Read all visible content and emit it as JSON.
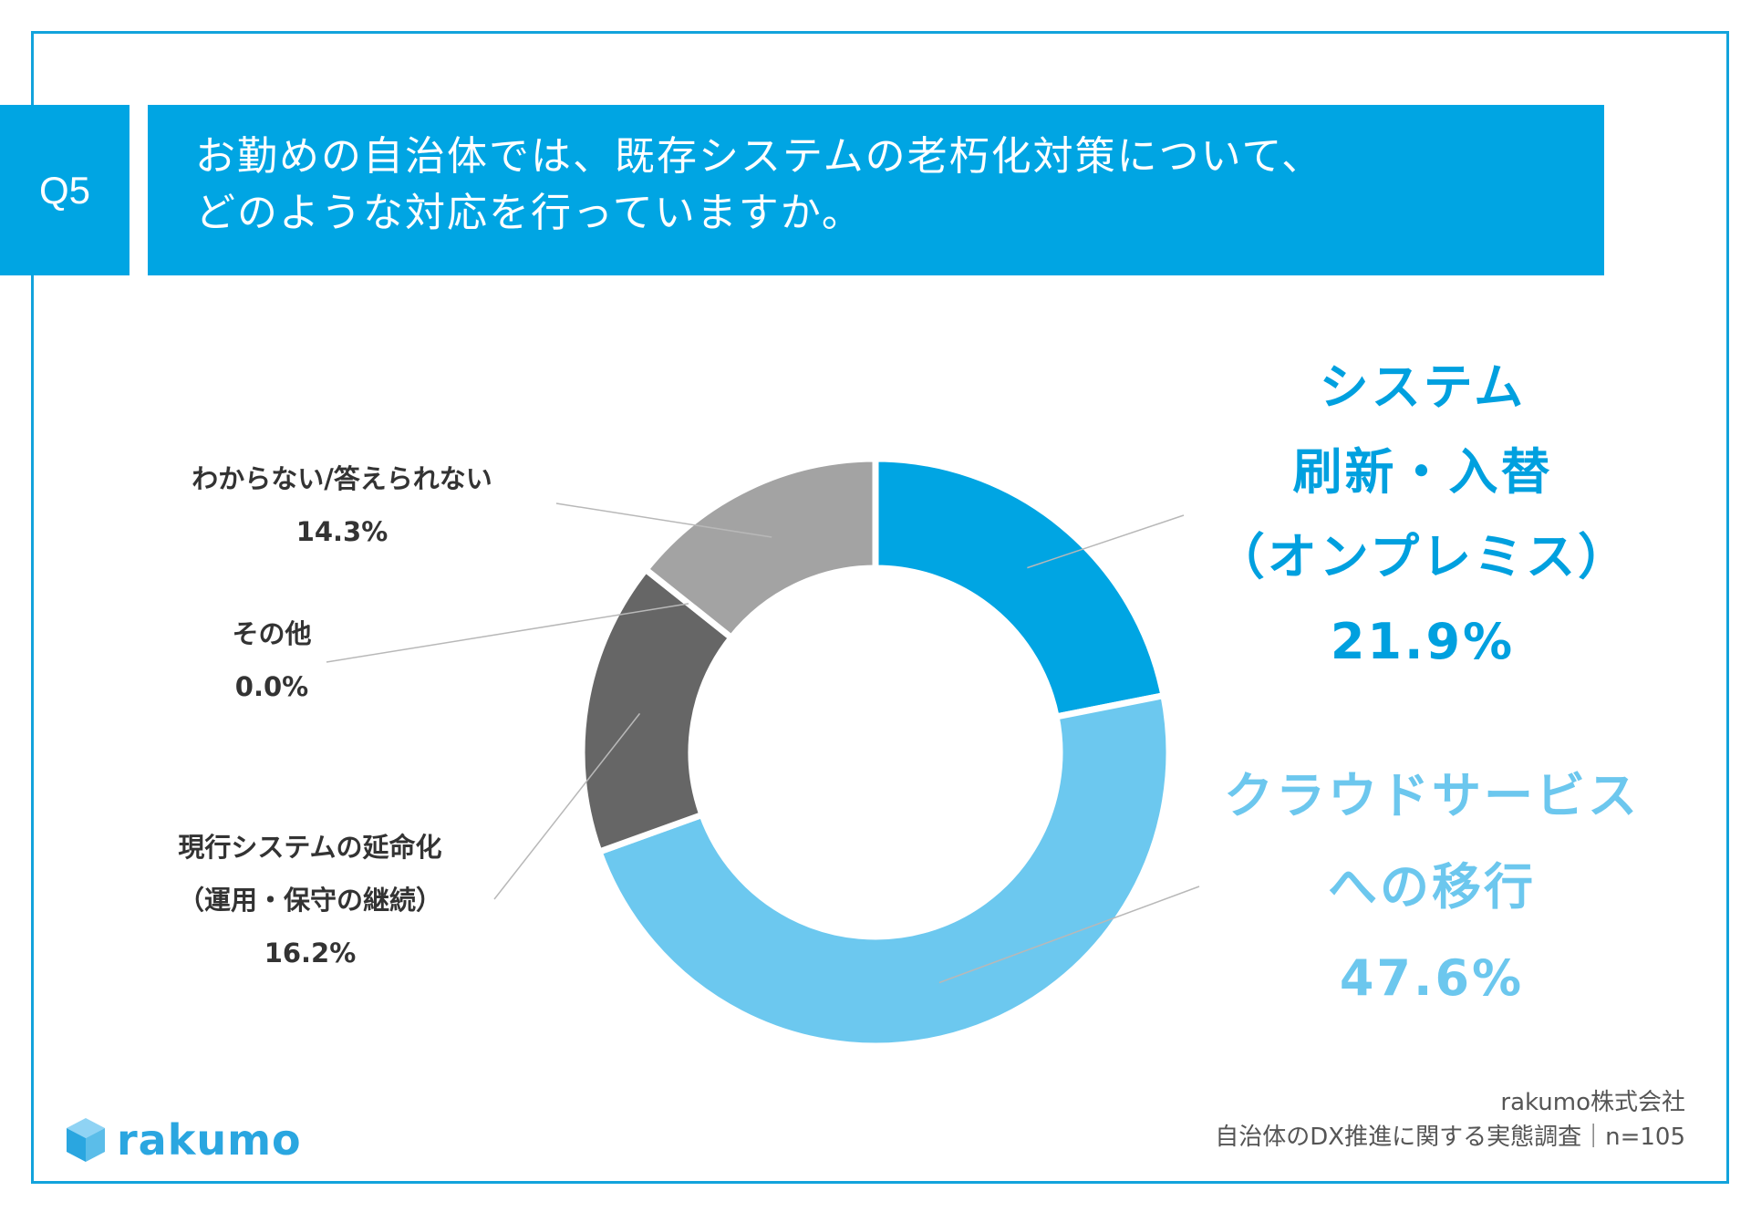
{
  "question": {
    "badge": "Q5",
    "line1": "お勤めの自治体では、既存システムの老朽化対策について、",
    "line2": "どのような対応を行っていますか。"
  },
  "chart_data": {
    "type": "pie",
    "style": "donut",
    "slices": [
      {
        "name": "システム刷新・入替（オンプレミス）",
        "value": 21.9,
        "color": "#00a5e3"
      },
      {
        "name": "クラウドサービスへの移行",
        "value": 47.6,
        "color": "#6cc8ef"
      },
      {
        "name": "現行システムの延命化（運用・保守の継続）",
        "value": 16.2,
        "color": "#666666"
      },
      {
        "name": "その他",
        "value": 0.0,
        "color": "#444444"
      },
      {
        "name": "わからない/答えられない",
        "value": 14.3,
        "color": "#a3a3a3"
      }
    ],
    "labels": {
      "renewal": {
        "lines": [
          "システム",
          "刷新・入替",
          "（オンプレミス）"
        ],
        "pct": "21.9%"
      },
      "cloud": {
        "lines": [
          "クラウドサービス",
          "への移行"
        ],
        "pct": "47.6%"
      },
      "extend": {
        "lines": [
          "現行システムの延命化",
          "（運用・保守の継続）"
        ],
        "pct": "16.2%"
      },
      "other": {
        "lines": [
          "その他"
        ],
        "pct": "0.0%"
      },
      "unknown": {
        "lines": [
          "わからない/答えられない"
        ],
        "pct": "14.3%"
      }
    }
  },
  "logo": {
    "text": "rakumo",
    "icon": "cube-icon"
  },
  "source": {
    "company": "rakumo株式会社",
    "survey": "自治体のDX推進に関する実態調査｜n=105"
  }
}
